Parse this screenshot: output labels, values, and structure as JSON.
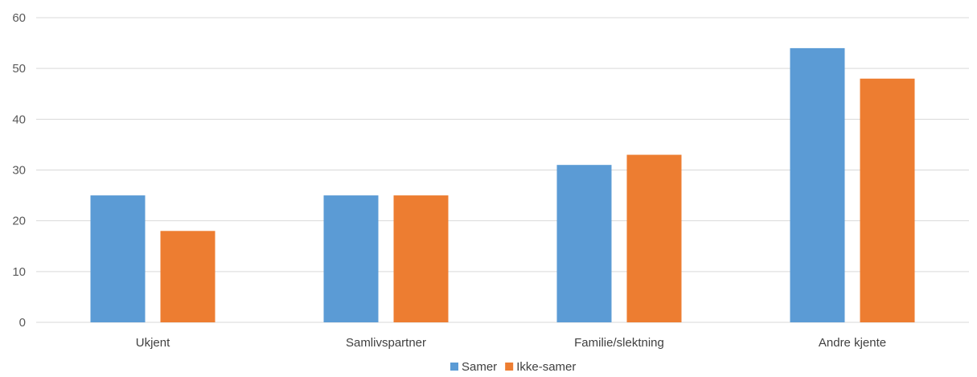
{
  "chart_data": {
    "type": "bar",
    "categories": [
      "Ukjent",
      "Samlivspartner",
      "Familie/slektning",
      "Andre kjente"
    ],
    "series": [
      {
        "name": "Samer",
        "values": [
          25,
          25,
          31,
          54
        ],
        "color": "#5b9bd5"
      },
      {
        "name": "Ikke-samer",
        "values": [
          18,
          25,
          33,
          48
        ],
        "color": "#ed7d31"
      }
    ],
    "ylim": [
      0,
      60
    ],
    "yticks": [
      0,
      10,
      20,
      30,
      40,
      50,
      60
    ],
    "grid": true,
    "legend": "bottom"
  }
}
